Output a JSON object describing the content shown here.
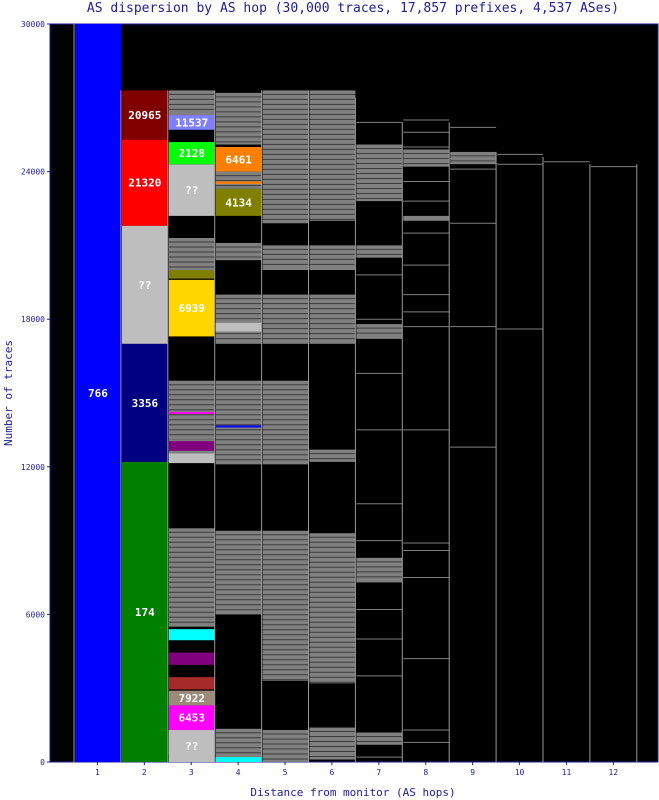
{
  "chart_data": {
    "type": "stacked-bar",
    "title": "AS dispersion by AS hop (30,000 traces, 17,857 prefixes, 4,537 ASes)",
    "xlabel": "Distance from monitor (AS hops)",
    "ylabel": "Number of traces",
    "ylim": [
      0,
      30000
    ],
    "yticks": [
      0,
      6000,
      12000,
      18000,
      24000,
      30000
    ],
    "yticklabels": [
      "0",
      "6000",
      "12000",
      "18000",
      "24000",
      "30000"
    ],
    "xticklabels": [
      "1",
      "2",
      "3",
      "4",
      "5",
      "6",
      "7",
      "8",
      "9",
      "10",
      "11",
      "12"
    ],
    "colors": {
      "background": "#000000",
      "band_gray": "#808080",
      "band_dark": "#3c3c3c",
      "unknown": "#bebebe",
      "divider": "#9a9a9a",
      "axis_text": "#1f1f8f"
    },
    "labeled_segments": [
      {
        "hop": 1,
        "low": 0,
        "high": 30000,
        "label": "766",
        "color": "#0000ff",
        "text_color": "#ffffff"
      },
      {
        "hop": 2,
        "low": 0,
        "high": 12200,
        "label": "174",
        "color": "#008000",
        "text_color": "#ffffff"
      },
      {
        "hop": 2,
        "low": 12200,
        "high": 17000,
        "label": "3356",
        "color": "#000080",
        "text_color": "#ffffff"
      },
      {
        "hop": 2,
        "low": 17000,
        "high": 21800,
        "label": "??",
        "color": "#bebebe",
        "text_color": "#ffffff"
      },
      {
        "hop": 2,
        "low": 21800,
        "high": 25300,
        "label": "21320",
        "color": "#ff0000",
        "text_color": "#ffffff"
      },
      {
        "hop": 2,
        "low": 25300,
        "high": 27300,
        "label": "20965",
        "color": "#800000",
        "text_color": "#ffffff"
      },
      {
        "hop": 3,
        "low": 0,
        "high": 1300,
        "label": "??",
        "color": "#bebebe",
        "text_color": "#ffffff"
      },
      {
        "hop": 3,
        "low": 1300,
        "high": 2300,
        "label": "6453",
        "color": "#ff00ff",
        "text_color": "#ffffff"
      },
      {
        "hop": 3,
        "low": 2300,
        "high": 2900,
        "label": "7922",
        "color": "#9c8b78",
        "text_color": "#ffffff"
      },
      {
        "hop": 3,
        "low": 17300,
        "high": 19600,
        "label": "6939",
        "color": "#ffd700",
        "text_color": "#ffffff"
      },
      {
        "hop": 3,
        "low": 22200,
        "high": 24300,
        "label": "??",
        "color": "#bebebe",
        "text_color": "#ffffff"
      },
      {
        "hop": 3,
        "low": 24300,
        "high": 25200,
        "label": "2128",
        "color": "#00ff00",
        "text_color": "#ffffff"
      },
      {
        "hop": 3,
        "low": 25700,
        "high": 26300,
        "label": "11537",
        "color": "#7f7fff",
        "text_color": "#ffffff"
      },
      {
        "hop": 4,
        "low": 22200,
        "high": 23300,
        "label": "4134",
        "color": "#808000",
        "text_color": "#ffffff"
      },
      {
        "hop": 4,
        "low": 24000,
        "high": 25000,
        "label": "6461",
        "color": "#ff8000",
        "text_color": "#ffffff"
      }
    ],
    "unlabeled_segments": [
      {
        "hop": 3,
        "low": 4950,
        "high": 5400,
        "color": "#00ffff"
      },
      {
        "hop": 3,
        "low": 3950,
        "high": 4450,
        "color": "#800080"
      },
      {
        "hop": 3,
        "low": 2950,
        "high": 3450,
        "color": "#a52a2a"
      },
      {
        "hop": 3,
        "low": 12150,
        "high": 12550,
        "color": "#bebebe"
      },
      {
        "hop": 3,
        "low": 12650,
        "high": 13050,
        "color": "#800080"
      },
      {
        "hop": 3,
        "low": 14150,
        "high": 14230,
        "color": "#ff00ff"
      },
      {
        "hop": 3,
        "low": 19650,
        "high": 20000,
        "color": "#808000"
      },
      {
        "hop": 4,
        "low": 0,
        "high": 200,
        "color": "#00ffff"
      },
      {
        "hop": 4,
        "low": 17500,
        "high": 17850,
        "color": "#bebebe"
      },
      {
        "hop": 4,
        "low": 13600,
        "high": 13680,
        "color": "#0000ff"
      },
      {
        "hop": 4,
        "low": 23500,
        "high": 23600,
        "color": "#ff8000"
      }
    ],
    "hop_extents": [
      {
        "hop": 1,
        "low": 0,
        "high": 30000
      },
      {
        "hop": 2,
        "low": 0,
        "high": 27300
      },
      {
        "hop": 3,
        "low": 0,
        "high": 27300
      },
      {
        "hop": 4,
        "low": 0,
        "high": 27300
      },
      {
        "hop": 5,
        "low": 0,
        "high": 27300
      },
      {
        "hop": 6,
        "low": 0,
        "high": 27300
      },
      {
        "hop": 7,
        "low": 0,
        "high": 27000
      },
      {
        "hop": 8,
        "low": 0,
        "high": 26000
      },
      {
        "hop": 9,
        "low": 0,
        "high": 26000
      },
      {
        "hop": 10,
        "low": 0,
        "high": 24800
      },
      {
        "hop": 11,
        "low": 0,
        "high": 24600
      },
      {
        "hop": 12,
        "low": 0,
        "high": 24300
      }
    ],
    "gray_bands": [
      {
        "hop": 3,
        "low": 300,
        "high": 1300
      },
      {
        "hop": 3,
        "low": 5500,
        "high": 9500
      },
      {
        "hop": 3,
        "low": 12550,
        "high": 13100
      },
      {
        "hop": 3,
        "low": 13100,
        "high": 15500
      },
      {
        "hop": 3,
        "low": 20000,
        "high": 21300
      },
      {
        "hop": 3,
        "low": 26300,
        "high": 27300
      },
      {
        "hop": 4,
        "low": 0,
        "high": 1350
      },
      {
        "hop": 4,
        "low": 6000,
        "high": 9400
      },
      {
        "hop": 4,
        "low": 12100,
        "high": 15500
      },
      {
        "hop": 4,
        "low": 17000,
        "high": 19000
      },
      {
        "hop": 4,
        "low": 20400,
        "high": 21100
      },
      {
        "hop": 4,
        "low": 23300,
        "high": 24000
      },
      {
        "hop": 4,
        "low": 25100,
        "high": 27200
      },
      {
        "hop": 5,
        "low": 0,
        "high": 1300
      },
      {
        "hop": 5,
        "low": 3300,
        "high": 9400
      },
      {
        "hop": 5,
        "low": 12100,
        "high": 15500
      },
      {
        "hop": 5,
        "low": 17000,
        "high": 19000
      },
      {
        "hop": 5,
        "low": 20000,
        "high": 21000
      },
      {
        "hop": 5,
        "low": 21900,
        "high": 27300
      },
      {
        "hop": 6,
        "low": 100,
        "high": 1400
      },
      {
        "hop": 6,
        "low": 3200,
        "high": 9300
      },
      {
        "hop": 6,
        "low": 12200,
        "high": 12700
      },
      {
        "hop": 6,
        "low": 17000,
        "high": 19000
      },
      {
        "hop": 6,
        "low": 20000,
        "high": 21000
      },
      {
        "hop": 6,
        "low": 22000,
        "high": 27300
      },
      {
        "hop": 7,
        "low": 700,
        "high": 1200
      },
      {
        "hop": 7,
        "low": 7300,
        "high": 8300
      },
      {
        "hop": 7,
        "low": 17200,
        "high": 17800
      },
      {
        "hop": 7,
        "low": 20500,
        "high": 21000
      },
      {
        "hop": 7,
        "low": 22800,
        "high": 25100
      },
      {
        "hop": 8,
        "low": 22000,
        "high": 22200
      },
      {
        "hop": 8,
        "low": 24200,
        "high": 24900
      },
      {
        "hop": 9,
        "low": 24300,
        "high": 24800
      }
    ],
    "thin_lines": [
      {
        "hop": 7,
        "values": [
          200,
          3500,
          5000,
          6200,
          9000,
          10500,
          13500,
          15800,
          18000,
          19800,
          26000
        ]
      },
      {
        "hop": 8,
        "values": [
          800,
          1300,
          4200,
          7500,
          8600,
          8900,
          13500,
          17700,
          18300,
          19000,
          20200,
          21500,
          22800,
          23600,
          25000,
          25600,
          26100
        ]
      },
      {
        "hop": 9,
        "values": [
          12800,
          17700,
          21900,
          24100,
          25800
        ]
      },
      {
        "hop": 10,
        "values": [
          17600,
          24300,
          24700
        ]
      },
      {
        "hop": 11,
        "values": [
          24400
        ]
      },
      {
        "hop": 12,
        "values": [
          24200
        ]
      }
    ]
  }
}
